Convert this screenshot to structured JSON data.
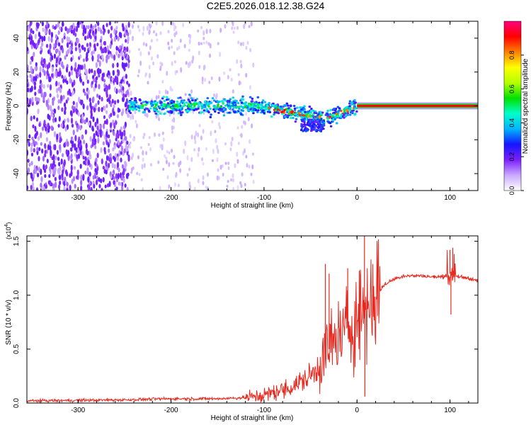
{
  "title": "C2E5.2026.018.12.38.G24",
  "chart_data": [
    {
      "type": "heatmap",
      "name": "spectrogram",
      "xlabel": "Height of straight line (km)",
      "ylabel": "Frequency (Hz)",
      "xlim": [
        -355,
        130
      ],
      "ylim": [
        -50,
        50
      ],
      "xticks": [
        -300,
        -200,
        -100,
        0,
        100
      ],
      "xtick_labels": [
        "-300",
        "-200",
        "-100",
        "0",
        "100"
      ],
      "yticks": [
        -40,
        -20,
        0,
        20,
        40
      ],
      "ytick_labels": [
        "-40",
        "-20",
        "0",
        "20",
        "40"
      ],
      "colorbar": {
        "label": "Normalized spectral amplitude",
        "range": [
          0,
          1
        ],
        "ticks": [
          0.0,
          0.2,
          0.4,
          0.6,
          0.8
        ],
        "tick_labels": [
          "0.0",
          "0.2",
          "0.4",
          "0.6",
          "0.8"
        ],
        "colors": [
          "#ffffff",
          "#c9a8ff",
          "#7b1fff",
          "#1515ff",
          "#00b4ff",
          "#00ffcc",
          "#00e000",
          "#b4ff00",
          "#ffff00",
          "#ff8000",
          "#ff0000",
          "#ff0080"
        ]
      },
      "regions": [
        {
          "x": [
            -355,
            -245
          ],
          "freq_spread": 50,
          "amplitude": 0.12,
          "description": "dense noise"
        },
        {
          "x": [
            -245,
            -110
          ],
          "freq_spread": 50,
          "amplitude": 0.05,
          "description": "sparse noise"
        },
        {
          "x": [
            -245,
            0
          ],
          "freq_center": 0,
          "freq_spread": 6,
          "amplitude": 0.45,
          "description": "signal band"
        },
        {
          "x": [
            0,
            130
          ],
          "freq_center": 0,
          "freq_spread": 1.5,
          "amplitude": 0.95,
          "description": "strong carrier"
        }
      ]
    },
    {
      "type": "line",
      "name": "snr",
      "xlabel": "Height of straight line (km)",
      "ylabel": "SNR (10 * v/v)",
      "y_multiplier_label": "(x10",
      "y_multiplier_exponent": "4",
      "y_multiplier_close": ")",
      "xlim": [
        -355,
        130
      ],
      "ylim": [
        0,
        1.55
      ],
      "xticks": [
        -300,
        -200,
        -100,
        0,
        100
      ],
      "xtick_labels": [
        "-300",
        "-200",
        "-100",
        "0",
        "100"
      ],
      "yticks": [
        0.0,
        0.5,
        1.0,
        1.5
      ],
      "ytick_labels": [
        "0.0",
        "0.5",
        "1.0",
        "1.5"
      ],
      "series": [
        {
          "name": "SNR",
          "color": "#e8281e",
          "x": [
            -355,
            -300,
            -250,
            -200,
            -150,
            -120,
            -100,
            -90,
            -80,
            -70,
            -60,
            -50,
            -40,
            -35,
            -30,
            -25,
            -20,
            -15,
            -10,
            -5,
            0,
            5,
            8,
            10,
            15,
            20,
            25,
            30,
            40,
            50,
            60,
            70,
            80,
            90,
            95,
            100,
            105,
            110,
            120,
            130
          ],
          "y": [
            0.02,
            0.025,
            0.03,
            0.04,
            0.04,
            0.05,
            0.07,
            0.1,
            0.12,
            0.15,
            0.2,
            0.25,
            0.35,
            0.45,
            0.5,
            0.55,
            0.6,
            0.65,
            0.7,
            0.75,
            0.8,
            0.85,
            0.9,
            0.9,
            0.95,
            1.0,
            1.05,
            1.1,
            1.15,
            1.18,
            1.18,
            1.18,
            1.17,
            1.17,
            1.18,
            1.2,
            1.18,
            1.17,
            1.16,
            1.13
          ]
        }
      ],
      "spikes": [
        {
          "x": -34,
          "y": 1.29
        },
        {
          "x": -30,
          "y": 1.2
        },
        {
          "x": -10,
          "y": 1.25
        },
        {
          "x": 8,
          "y": 1.55
        },
        {
          "x": 8.5,
          "y": 0.06
        },
        {
          "x": 100,
          "y": 1.42
        },
        {
          "x": 103,
          "y": 1.44
        },
        {
          "x": 101,
          "y": 0.82
        }
      ]
    }
  ]
}
